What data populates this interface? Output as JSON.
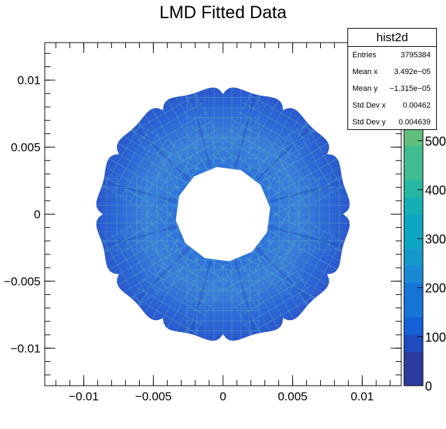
{
  "chart_data": {
    "type": "heatmap",
    "title": "LMD Fitted Data",
    "xlabel": "",
    "ylabel": "",
    "xlim": [
      -0.0128,
      0.0128
    ],
    "ylim": [
      -0.0128,
      0.0128
    ],
    "x_ticks": [
      -0.01,
      -0.005,
      0,
      0.005,
      0.01
    ],
    "x_tick_labels": [
      "−0.01",
      "−0.005",
      "0",
      "0.005",
      "0.01"
    ],
    "y_ticks": [
      -0.01,
      -0.005,
      0,
      0.005,
      0.01
    ],
    "y_tick_labels": [
      "−0.01",
      "−0.005",
      "0",
      "0.005",
      "0.01"
    ],
    "distribution": {
      "shape": "annulus",
      "center": [
        0,
        0
      ],
      "inner_radius": 0.0033,
      "outer_radius": 0.0091,
      "sectors": 12,
      "dominant_color": "#2f70d6"
    },
    "colorbar": {
      "range": [
        0,
        700
      ],
      "ticks": [
        0,
        100,
        200,
        300,
        400,
        500
      ],
      "tick_labels": [
        "0",
        "100",
        "200",
        "300",
        "400",
        "500"
      ],
      "colors": [
        "#2e3b9e",
        "#1f4bbf",
        "#1460d6",
        "#1676d8",
        "#1a89d4",
        "#1598cc",
        "#0da6c2",
        "#14afb4",
        "#26b7a3",
        "#3fbd91",
        "#61bf7e",
        "#86be6d",
        "#a8ba60",
        "#c7b556",
        "#d9b54c"
      ]
    },
    "legend": "top-right",
    "grid": false
  },
  "stats_box": {
    "name": "hist2d",
    "rows": [
      {
        "label": "Entries",
        "value": "3795384"
      },
      {
        "label": "Mean x",
        "value": "3.492e−05"
      },
      {
        "label": "Mean y",
        "value": "−1.315e−05"
      },
      {
        "label": "Std Dev x",
        "value": "0.00462"
      },
      {
        "label": "Std Dev y",
        "value": "0.004639"
      }
    ]
  }
}
